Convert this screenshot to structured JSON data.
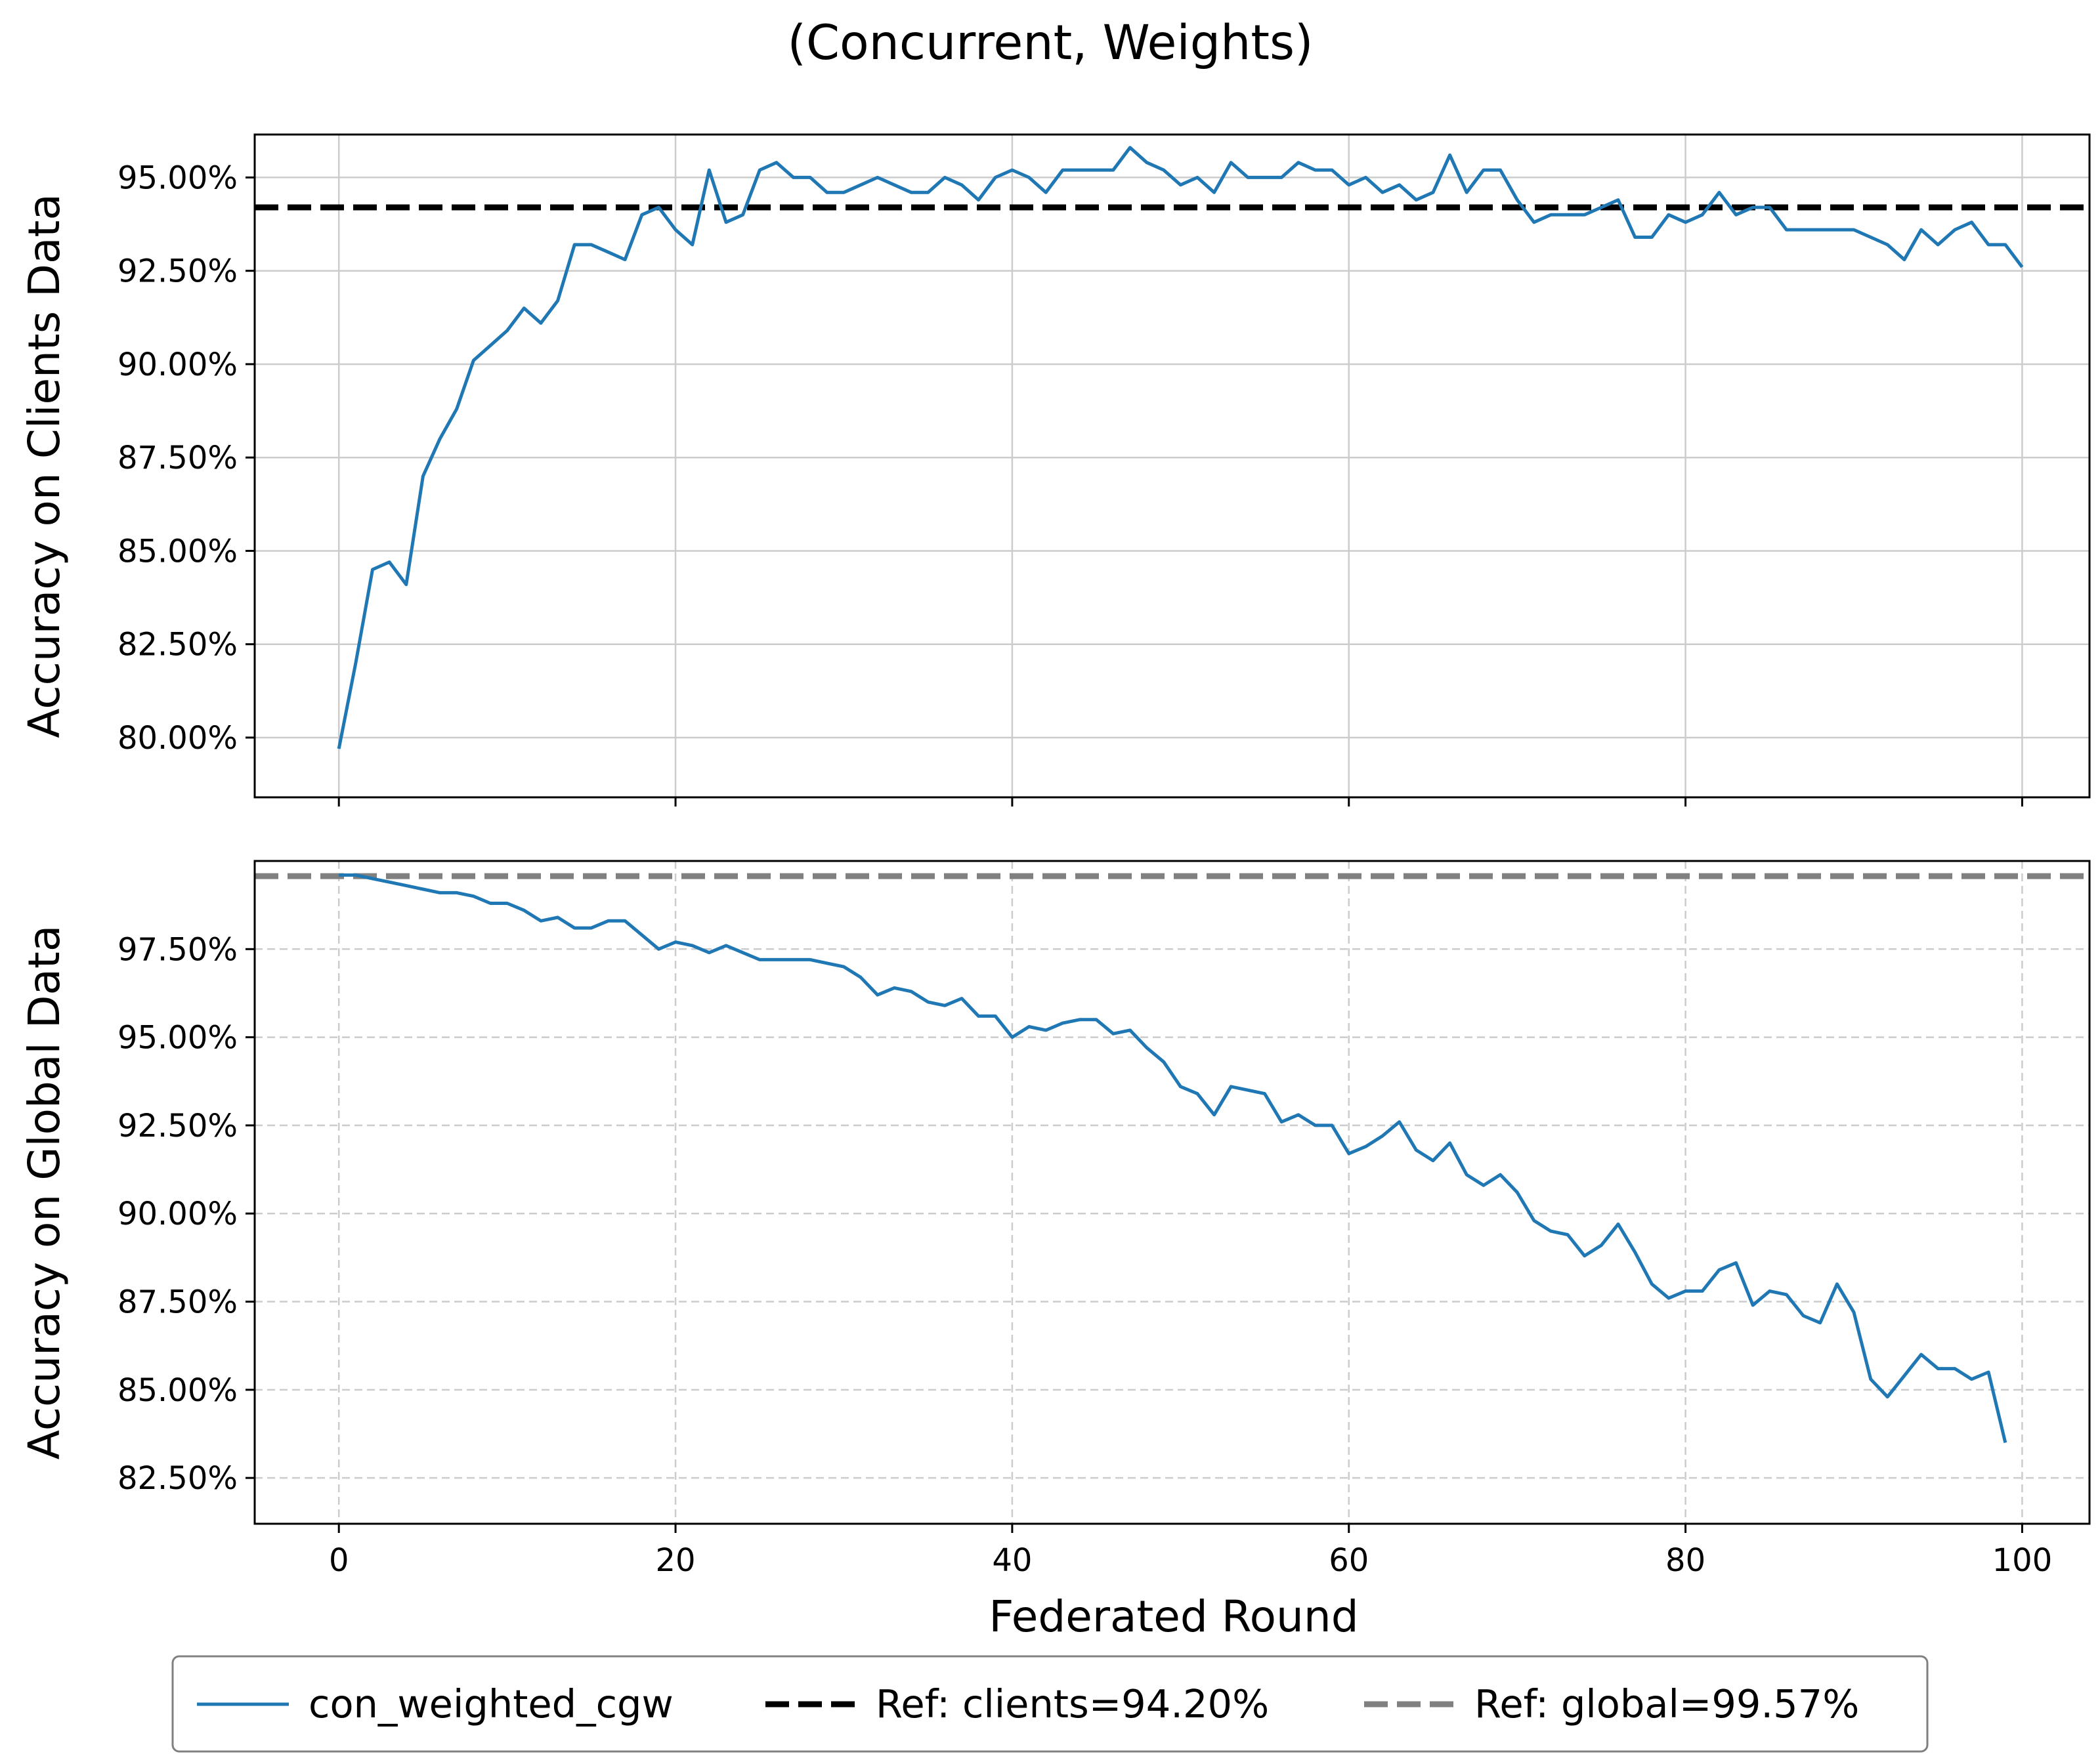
{
  "title": "(Concurrent, Weights)",
  "xlabel": "Federated Round",
  "colors": {
    "series": "#1f77b4",
    "ref_clients": "#000000",
    "ref_global": "#808080",
    "grid": "#cccccc"
  },
  "legend": {
    "placement": "bottom-center",
    "items": [
      "con_weighted_cgw",
      "Ref: clients=94.20%",
      "Ref: global=99.57%"
    ]
  },
  "chart_data": [
    {
      "type": "line",
      "ylabel": "Accuracy on Clients Data",
      "xlim": [
        -5,
        104
      ],
      "ylim": [
        78.4,
        96.15
      ],
      "xticks": [
        0,
        20,
        40,
        60,
        80,
        100
      ],
      "yticks": [
        80,
        82.5,
        85,
        87.5,
        90,
        92.5,
        95
      ],
      "ytick_labels": [
        "80.00%",
        "82.50%",
        "85.00%",
        "87.50%",
        "90.00%",
        "92.50%",
        "95.00%"
      ],
      "grid": "solid",
      "reference_line": {
        "name": "Ref: clients=94.20%",
        "y": 94.2,
        "style": "dashed"
      },
      "series": [
        {
          "name": "con_weighted_cgw",
          "values": [
            79.7,
            82.0,
            84.5,
            84.7,
            84.1,
            87.0,
            88.0,
            88.8,
            90.1,
            90.5,
            90.9,
            91.5,
            91.1,
            91.7,
            93.2,
            93.2,
            93.0,
            92.8,
            94.0,
            94.2,
            93.6,
            93.2,
            95.2,
            93.8,
            94.0,
            95.2,
            95.4,
            95.0,
            95.0,
            94.6,
            94.6,
            94.8,
            95.0,
            94.8,
            94.6,
            94.6,
            95.0,
            94.8,
            94.4,
            95.0,
            95.2,
            95.0,
            94.6,
            95.2,
            95.2,
            95.2,
            95.2,
            95.8,
            95.4,
            95.2,
            94.8,
            95.0,
            94.6,
            95.4,
            95.0,
            95.0,
            95.0,
            95.4,
            95.2,
            95.2,
            94.8,
            95.0,
            94.6,
            94.8,
            94.4,
            94.6,
            95.6,
            94.6,
            95.2,
            95.2,
            94.4,
            93.8,
            94.0,
            94.0,
            94.0,
            94.2,
            94.4,
            93.4,
            93.4,
            94.0,
            93.8,
            94.0,
            94.6,
            94.0,
            94.2,
            94.2,
            93.6,
            93.6,
            93.6,
            93.6,
            93.6,
            93.4,
            93.2,
            92.8,
            93.6,
            93.2,
            93.6,
            93.8,
            93.2,
            93.2,
            92.6
          ]
        }
      ]
    },
    {
      "type": "line",
      "ylabel": "Accuracy on Global Data",
      "xlim": [
        -5,
        104
      ],
      "ylim": [
        81.2,
        100.0
      ],
      "xticks": [
        0,
        20,
        40,
        60,
        80,
        100
      ],
      "xtick_labels": [
        "0",
        "20",
        "40",
        "60",
        "80",
        "100"
      ],
      "yticks": [
        82.5,
        85,
        87.5,
        90,
        92.5,
        95,
        97.5
      ],
      "ytick_labels": [
        "82.50%",
        "85.00%",
        "87.50%",
        "90.00%",
        "92.50%",
        "95.00%",
        "97.50%"
      ],
      "grid": "dashed",
      "reference_line": {
        "name": "Ref: global=99.57%",
        "y": 99.57,
        "style": "dashed"
      },
      "series": [
        {
          "name": "con_weighted_cgw",
          "values": [
            99.6,
            99.6,
            99.5,
            99.4,
            99.3,
            99.2,
            99.1,
            99.1,
            99.0,
            98.8,
            98.8,
            98.6,
            98.3,
            98.4,
            98.1,
            98.1,
            98.3,
            98.3,
            97.9,
            97.5,
            97.7,
            97.6,
            97.4,
            97.6,
            97.4,
            97.2,
            97.2,
            97.2,
            97.2,
            97.1,
            97.0,
            96.7,
            96.2,
            96.4,
            96.3,
            96.0,
            95.9,
            96.1,
            95.6,
            95.6,
            95.0,
            95.3,
            95.2,
            95.4,
            95.5,
            95.5,
            95.1,
            95.2,
            94.7,
            94.3,
            93.6,
            93.4,
            92.8,
            93.6,
            93.5,
            93.4,
            92.6,
            92.8,
            92.5,
            92.5,
            91.7,
            91.9,
            92.2,
            92.6,
            91.8,
            91.5,
            92.0,
            91.1,
            90.8,
            91.1,
            90.6,
            89.8,
            89.5,
            89.4,
            88.8,
            89.1,
            89.7,
            88.9,
            88.0,
            87.6,
            87.8,
            87.8,
            88.4,
            88.6,
            87.4,
            87.8,
            87.7,
            87.1,
            86.9,
            88.0,
            87.2,
            85.3,
            84.8,
            85.4,
            86.0,
            85.6,
            85.6,
            85.3,
            85.5,
            83.5
          ]
        }
      ]
    }
  ]
}
